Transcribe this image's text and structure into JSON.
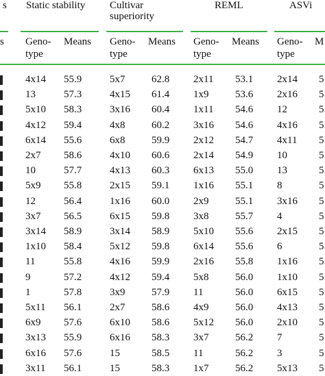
{
  "header": {
    "groups": [
      "Static stability",
      "Cultivar\nsuperiority",
      "REML",
      "ASVi"
    ],
    "left_cut_top": "s",
    "sub_left_cut": "s",
    "sub_genotype": "Geno-\ntype",
    "sub_means": "Means",
    "sub_means_cut": "M"
  },
  "table": {
    "rows": [
      [
        "4x14",
        "55.9",
        "5x7",
        "62.8",
        "2x11",
        "53.1",
        "2x14",
        "5"
      ],
      [
        "13",
        "57.3",
        "4x15",
        "61.4",
        "1x9",
        "53.6",
        "2x16",
        "5"
      ],
      [
        "5x10",
        "58.3",
        "3x16",
        "60.4",
        "1x11",
        "54.6",
        "12",
        "5"
      ],
      [
        "4x12",
        "59.4",
        "4x8",
        "60.2",
        "3x16",
        "54.6",
        "4x16",
        "5"
      ],
      [
        "6x14",
        "55.6",
        "6x8",
        "59.9",
        "2x12",
        "54.7",
        "4x11",
        "5"
      ],
      [
        "2x7",
        "58.6",
        "4x10",
        "60.6",
        "2x14",
        "54.9",
        "10",
        "5"
      ],
      [
        "10",
        "57.7",
        "4x13",
        "60.3",
        "6x13",
        "55.0",
        "13",
        "5"
      ],
      [
        "5x9",
        "55.8",
        "2x15",
        "59.1",
        "1x16",
        "55.1",
        "8",
        "5"
      ],
      [
        "12",
        "56.4",
        "1x16",
        "60.0",
        "2x9",
        "55.1",
        "3x16",
        "5"
      ],
      [
        "3x7",
        "56.5",
        "6x15",
        "59.8",
        "3x8",
        "55.7",
        "4",
        "5"
      ],
      [
        "3x14",
        "58.9",
        "3x14",
        "58.9",
        "5x10",
        "55.6",
        "2x15",
        "5"
      ],
      [
        "1x10",
        "58.4",
        "5x12",
        "59.8",
        "6x14",
        "55.6",
        "6",
        "5"
      ],
      [
        "11",
        "55.8",
        "4x16",
        "59.9",
        "2x16",
        "55.8",
        "1x16",
        "5"
      ],
      [
        "9",
        "57.2",
        "4x12",
        "59.4",
        "5x8",
        "56.0",
        "1x10",
        "5"
      ],
      [
        "1",
        "57.8",
        "3x9",
        "57.9",
        "11",
        "56.0",
        "6x15",
        "5"
      ],
      [
        "5x11",
        "56.1",
        "2x7",
        "58.6",
        "4x9",
        "56.0",
        "4x13",
        "5"
      ],
      [
        "6x9",
        "57.6",
        "6x10",
        "58.6",
        "5x12",
        "56.0",
        "2x10",
        "5"
      ],
      [
        "3x13",
        "55.9",
        "6x16",
        "58.3",
        "3x7",
        "56.2",
        "7",
        "5"
      ],
      [
        "6x16",
        "57.6",
        "15",
        "58.5",
        "11",
        "56.2",
        "3",
        "5"
      ],
      [
        "3x11",
        "56.1",
        "15",
        "58.3",
        "1x7",
        "56.2",
        "5x13",
        "5"
      ]
    ]
  }
}
